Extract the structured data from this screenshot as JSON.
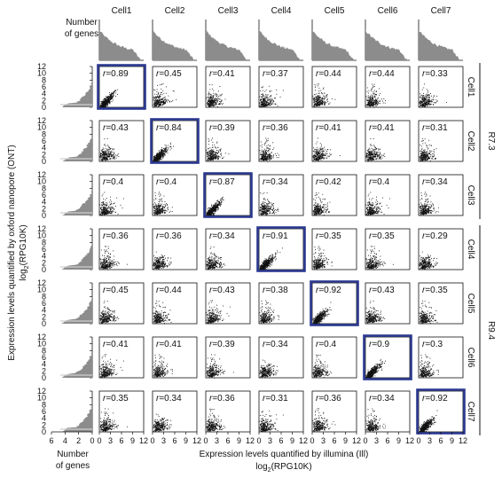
{
  "chart_data": {
    "type": "scatter",
    "cells": [
      "Cell1",
      "Cell2",
      "Cell3",
      "Cell4",
      "Cell5",
      "Cell6",
      "Cell7"
    ],
    "col_headers": [
      "Cell1",
      "Cell2",
      "Cell3",
      "Cell4",
      "Cell5",
      "Cell6",
      "Cell7"
    ],
    "row_headers": [
      "Cell1",
      "Cell2",
      "Cell3",
      "Cell4",
      "Cell5",
      "Cell6",
      "Cell7"
    ],
    "groups": [
      {
        "label": "R7.3",
        "rows": [
          0,
          1,
          2
        ]
      },
      {
        "label": "R9.4",
        "rows": [
          3,
          4,
          5,
          6
        ]
      }
    ],
    "r_prefix": "r",
    "r_values": [
      [
        "0.89",
        "0.45",
        "0.41",
        "0.37",
        "0.44",
        "0.44",
        "0.33"
      ],
      [
        "0.43",
        "0.84",
        "0.39",
        "0.36",
        "0.41",
        "0.41",
        "0.31"
      ],
      [
        "0.4",
        "0.4",
        "0.87",
        "0.34",
        "0.42",
        "0.4",
        "0.34"
      ],
      [
        "0.36",
        "0.36",
        "0.34",
        "0.91",
        "0.35",
        "0.35",
        "0.29"
      ],
      [
        "0.45",
        "0.44",
        "0.43",
        "0.38",
        "0.92",
        "0.43",
        "0.35"
      ],
      [
        "0.41",
        "0.41",
        "0.39",
        "0.34",
        "0.4",
        "0.9",
        "0.3"
      ],
      [
        "0.35",
        "0.34",
        "0.36",
        "0.31",
        "0.36",
        "0.34",
        "0.92"
      ]
    ],
    "highlight_color": "#2b3990",
    "point_color": "#111111",
    "hist_color": "#8c8c8c",
    "x_axis": {
      "range": [
        0,
        12
      ],
      "ticks": [
        0,
        3,
        6,
        9,
        12
      ],
      "tick_labels": [
        "0",
        "3",
        "6",
        "9",
        "12"
      ]
    },
    "y_axis": {
      "range": [
        0,
        12
      ],
      "ticks": [
        0,
        3,
        6,
        9,
        12
      ],
      "tick_labels": [
        "0",
        "3",
        "6",
        "9",
        "12"
      ]
    },
    "y_ticks_display": [
      "0",
      "2",
      "4",
      "6",
      "8",
      "10",
      "12"
    ],
    "y_ticks_values": [
      0,
      2,
      4,
      6,
      8,
      10,
      12
    ],
    "hist_x_ticks": [
      "6",
      "4",
      "2",
      "0"
    ],
    "hist_x_values": [
      6,
      4,
      2,
      0
    ],
    "top_hist_label_line1": "Number",
    "top_hist_label_line2": "of genes",
    "left_hist_label_line1": "Number",
    "left_hist_label_line2": "of genes",
    "xlabel_line1": "Expression levels quantified by illumina (Ill)",
    "xlabel_line2_pre": "log",
    "xlabel_line2_sub": "2",
    "xlabel_line2_post": "(RPG10K)",
    "ylabel_line1": "Expression levels quantified by oxford nanopore (ONT)",
    "ylabel_line2_pre": "log",
    "ylabel_line2_sub": "2",
    "ylabel_line2_post": "(RPG10K)"
  }
}
